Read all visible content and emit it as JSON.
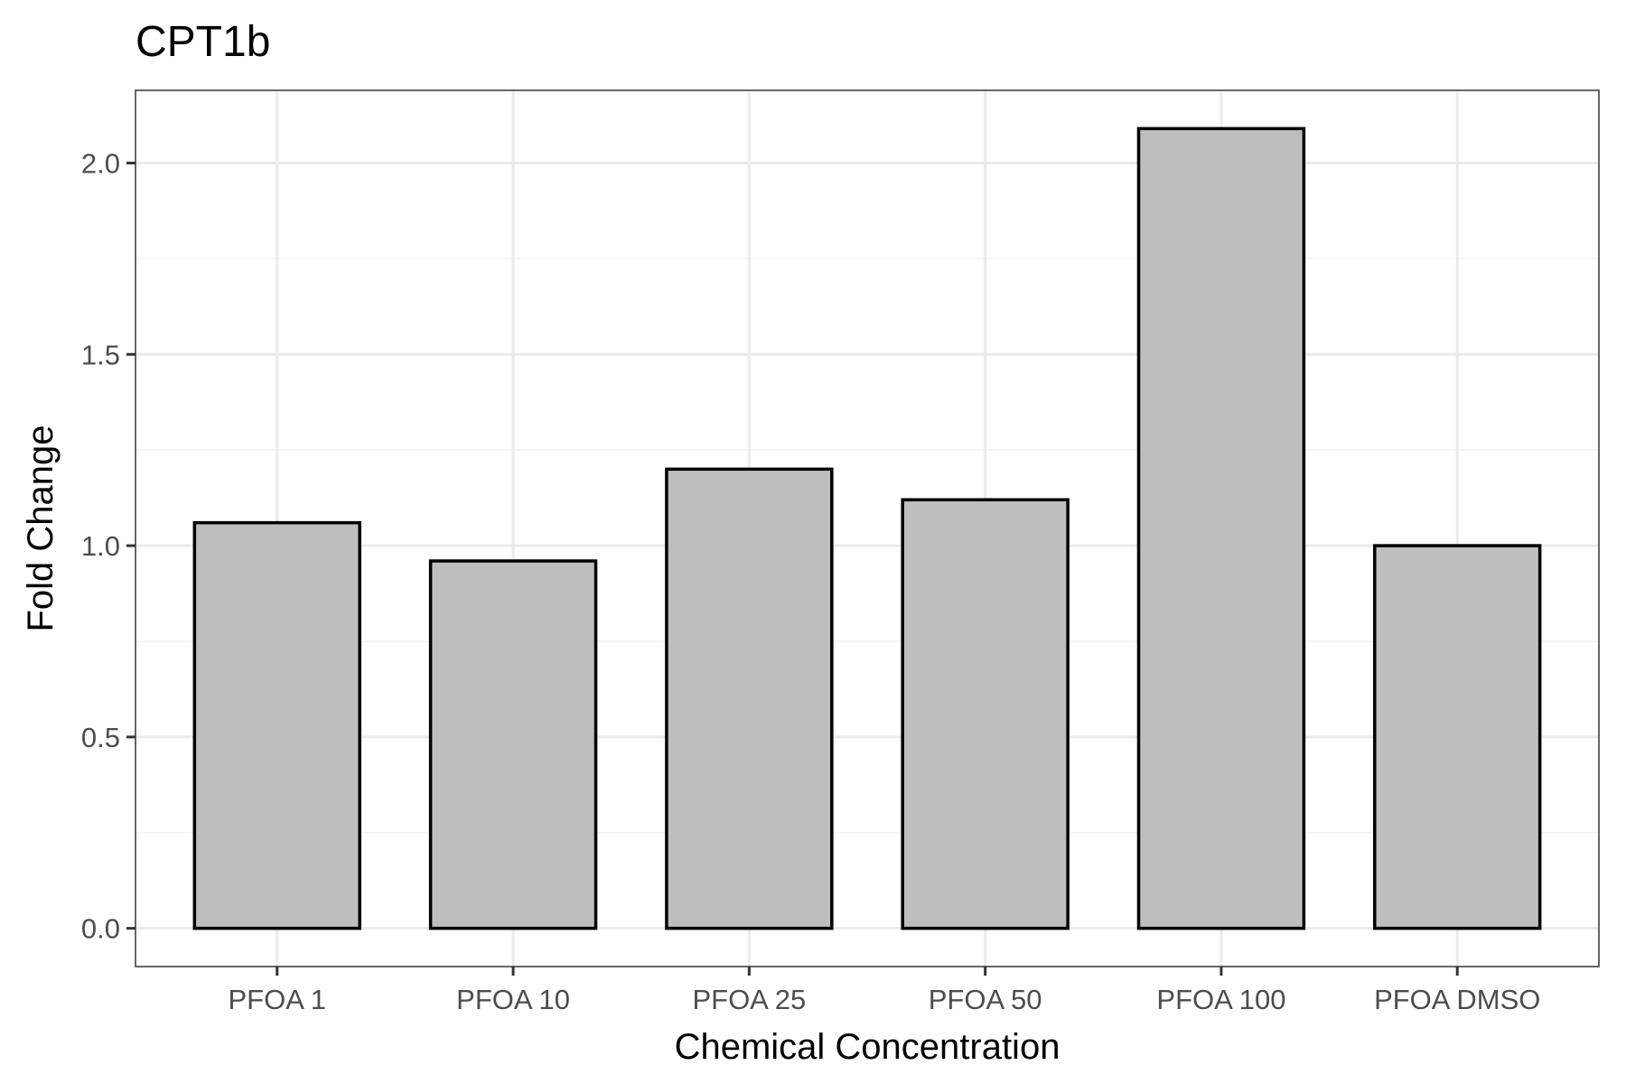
{
  "chart_data": {
    "type": "bar",
    "title": "CPT1b",
    "xlabel": "Chemical Concentration",
    "ylabel": "Fold Change",
    "categories": [
      "PFOA 1",
      "PFOA 10",
      "PFOA 25",
      "PFOA 50",
      "PFOA 100",
      "PFOA DMSO"
    ],
    "values": [
      1.06,
      0.96,
      1.2,
      1.12,
      2.09,
      1.0
    ],
    "ylim": [
      -0.1,
      2.19
    ],
    "yticks": [
      0.0,
      0.5,
      1.0,
      1.5,
      2.0
    ],
    "ytick_labels": [
      "0.0",
      "0.5",
      "1.0",
      "1.5",
      "2.0"
    ],
    "grid": true,
    "bar_fill": "#bebebe",
    "bar_outline": "#000000"
  }
}
